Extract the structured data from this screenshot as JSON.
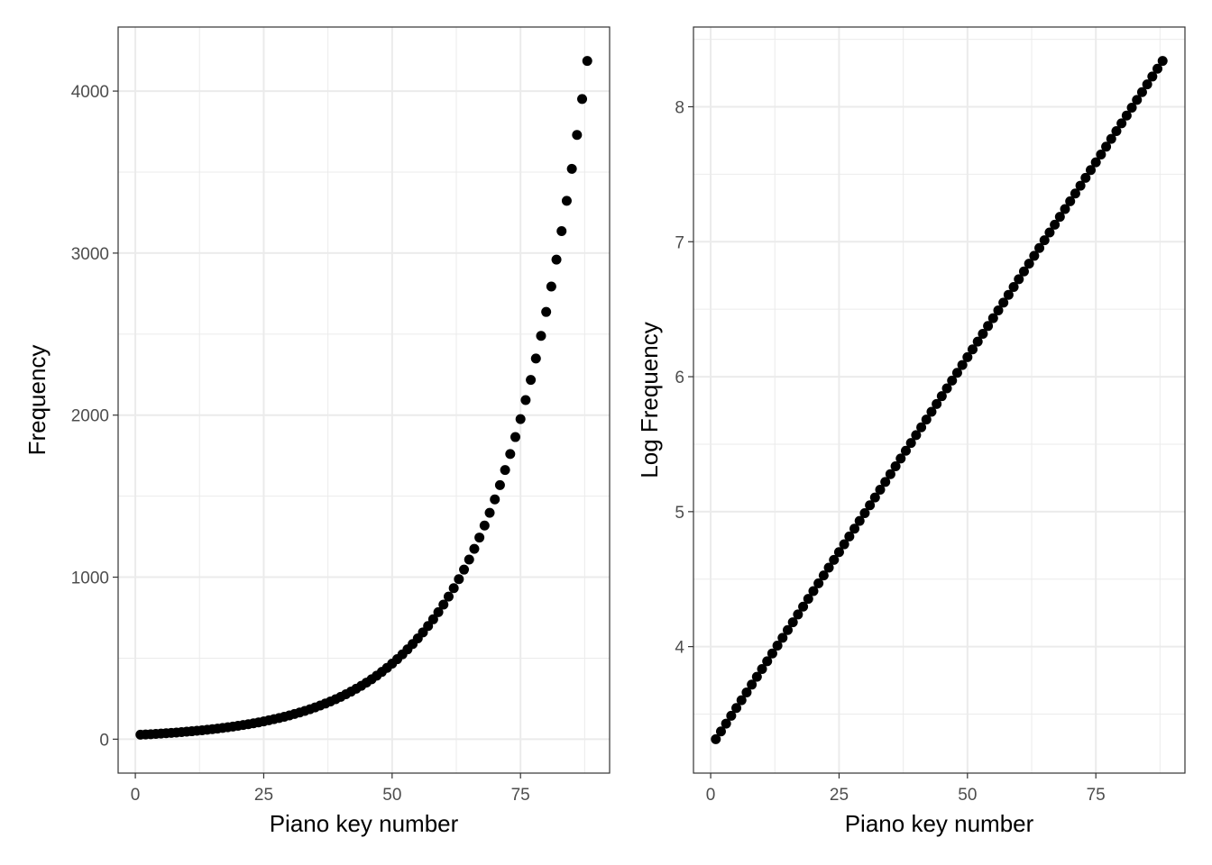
{
  "chart_data": [
    {
      "type": "scatter",
      "xlabel": "Piano key number",
      "ylabel": "Frequency",
      "xlim": [
        1,
        88
      ],
      "ylim": [
        0,
        4186
      ],
      "x_ticks": [
        0,
        25,
        50,
        75
      ],
      "y_ticks": [
        0,
        1000,
        2000,
        3000,
        4000
      ],
      "x_tick_labels": [
        "0",
        "25",
        "50",
        "75"
      ],
      "y_tick_labels": [
        "0",
        "1000",
        "2000",
        "3000",
        "4000"
      ],
      "grid": true,
      "x": [
        1,
        2,
        3,
        4,
        5,
        6,
        7,
        8,
        9,
        10,
        11,
        12,
        13,
        14,
        15,
        16,
        17,
        18,
        19,
        20,
        21,
        22,
        23,
        24,
        25,
        26,
        27,
        28,
        29,
        30,
        31,
        32,
        33,
        34,
        35,
        36,
        37,
        38,
        39,
        40,
        41,
        42,
        43,
        44,
        45,
        46,
        47,
        48,
        49,
        50,
        51,
        52,
        53,
        54,
        55,
        56,
        57,
        58,
        59,
        60,
        61,
        62,
        63,
        64,
        65,
        66,
        67,
        68,
        69,
        70,
        71,
        72,
        73,
        74,
        75,
        76,
        77,
        78,
        79,
        80,
        81,
        82,
        83,
        84,
        85,
        86,
        87,
        88
      ],
      "y": [
        27.5,
        29.14,
        30.87,
        32.7,
        34.65,
        36.71,
        38.89,
        41.2,
        43.65,
        46.25,
        49.0,
        51.91,
        55.0,
        58.27,
        61.74,
        65.41,
        69.3,
        73.42,
        77.78,
        82.41,
        87.31,
        92.5,
        98.0,
        103.83,
        110.0,
        116.54,
        123.47,
        130.81,
        138.59,
        146.83,
        155.56,
        164.81,
        174.61,
        185.0,
        196.0,
        207.65,
        220.0,
        233.08,
        246.94,
        261.63,
        277.18,
        293.66,
        311.13,
        329.63,
        349.23,
        369.99,
        392.0,
        415.3,
        440.0,
        466.16,
        493.88,
        523.25,
        554.37,
        587.33,
        622.25,
        659.26,
        698.46,
        739.99,
        783.99,
        830.61,
        880.0,
        932.33,
        987.77,
        1046.5,
        1108.73,
        1174.66,
        1244.51,
        1318.51,
        1396.91,
        1479.98,
        1567.98,
        1661.22,
        1760.0,
        1864.66,
        1975.53,
        2093.0,
        2217.46,
        2349.32,
        2489.02,
        2637.02,
        2793.83,
        2959.96,
        3135.96,
        3322.44,
        3520.0,
        3729.31,
        3951.07,
        4186.01
      ]
    },
    {
      "type": "scatter",
      "xlabel": "Piano key number",
      "ylabel": "Log Frequency",
      "xlim": [
        1,
        88
      ],
      "ylim": [
        3.3142,
        8.3395
      ],
      "x_ticks": [
        0,
        25,
        50,
        75
      ],
      "y_ticks": [
        4,
        5,
        6,
        7,
        8
      ],
      "x_tick_labels": [
        "0",
        "25",
        "50",
        "75"
      ],
      "y_tick_labels": [
        "4",
        "5",
        "6",
        "7",
        "8"
      ],
      "grid": true,
      "x": [
        1,
        2,
        3,
        4,
        5,
        6,
        7,
        8,
        9,
        10,
        11,
        12,
        13,
        14,
        15,
        16,
        17,
        18,
        19,
        20,
        21,
        22,
        23,
        24,
        25,
        26,
        27,
        28,
        29,
        30,
        31,
        32,
        33,
        34,
        35,
        36,
        37,
        38,
        39,
        40,
        41,
        42,
        43,
        44,
        45,
        46,
        47,
        48,
        49,
        50,
        51,
        52,
        53,
        54,
        55,
        56,
        57,
        58,
        59,
        60,
        61,
        62,
        63,
        64,
        65,
        66,
        67,
        68,
        69,
        70,
        71,
        72,
        73,
        74,
        75,
        76,
        77,
        78,
        79,
        80,
        81,
        82,
        83,
        84,
        85,
        86,
        87,
        88
      ],
      "y": [
        3.3142,
        3.372,
        3.4297,
        3.4875,
        3.5452,
        3.603,
        3.6608,
        3.7185,
        3.7763,
        3.8341,
        3.8918,
        3.9496,
        4.0073,
        4.0651,
        4.1229,
        4.1806,
        4.2384,
        4.2962,
        4.3539,
        4.4117,
        4.4694,
        4.5272,
        4.585,
        4.6427,
        4.7005,
        4.7583,
        4.816,
        4.8738,
        4.9315,
        4.9893,
        5.0471,
        5.1048,
        5.1626,
        5.2204,
        5.2781,
        5.3359,
        5.3936,
        5.4514,
        5.5092,
        5.5669,
        5.6247,
        5.6825,
        5.7402,
        5.798,
        5.8557,
        5.9135,
        5.9713,
        6.029,
        6.0868,
        6.1446,
        6.2023,
        6.2601,
        6.3178,
        6.3756,
        6.4334,
        6.4911,
        6.5489,
        6.6067,
        6.6644,
        6.7222,
        6.7799,
        6.8377,
        6.8955,
        6.9532,
        7.011,
        7.0688,
        7.1265,
        7.1843,
        7.242,
        7.2998,
        7.3576,
        7.4153,
        7.4731,
        7.5309,
        7.5886,
        7.6464,
        7.7041,
        7.7619,
        7.8197,
        7.8774,
        7.9352,
        7.993,
        8.0507,
        8.1085,
        8.1662,
        8.224,
        8.2818,
        8.3395
      ]
    }
  ]
}
